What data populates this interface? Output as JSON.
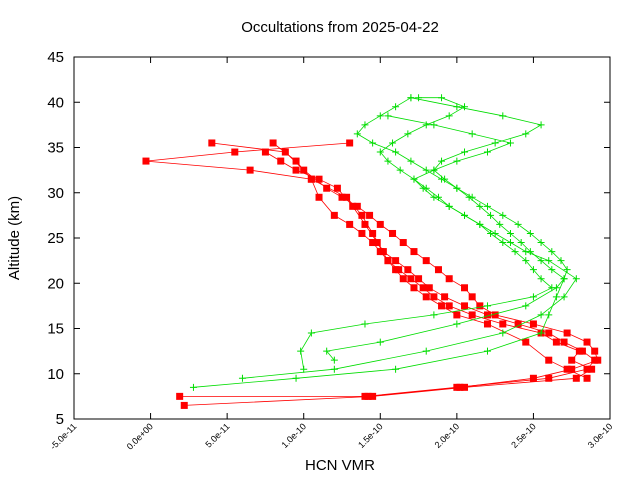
{
  "chart_data": {
    "type": "line",
    "title": "Occultations from 2025-04-22",
    "xlabel": "HCN VMR",
    "ylabel": "Altitude (km)",
    "xlim": [
      -5e-11,
      3e-10
    ],
    "ylim": [
      5,
      45
    ],
    "x_ticks": [
      -5e-11,
      0,
      5e-11,
      1e-10,
      1.5e-10,
      2e-10,
      2.5e-10,
      3e-10
    ],
    "x_tick_labels": [
      "-5.0e-11",
      "0.0e+00",
      "5.0e-11",
      "1.0e-10",
      "1.5e-10",
      "2.0e-10",
      "2.5e-10",
      "3.0e-10"
    ],
    "y_ticks": [
      5,
      10,
      15,
      20,
      25,
      30,
      35,
      40,
      45
    ],
    "y_tick_labels": [
      "5",
      "10",
      "15",
      "20",
      "25",
      "30",
      "35",
      "40",
      "45"
    ],
    "series": [
      {
        "name": "profile-red-1",
        "color": "#ff0000",
        "marker": "square",
        "x": [
          2.2e-11,
          1.45e-10,
          2.05e-10,
          2.78e-10,
          2.88e-10,
          2.75e-10,
          2.8e-10,
          2.65e-10,
          2.55e-10,
          2.3e-10,
          2.1e-10,
          1.95e-10,
          1.85e-10,
          1.78e-10,
          1.7e-10,
          1.62e-10,
          1.55e-10,
          1.48e-10,
          1.4e-10,
          1.32e-10,
          1.22e-10,
          1.1e-10,
          9.5e-11,
          8.5e-11,
          7.5e-11
        ],
        "y": [
          6.5,
          7.5,
          8.5,
          9.5,
          10.5,
          11.5,
          12.5,
          13.5,
          14.5,
          15.5,
          16.5,
          17.5,
          18.5,
          19.5,
          20.5,
          21.5,
          22.5,
          24.5,
          26.5,
          28.5,
          30.5,
          31.5,
          32.5,
          33.5,
          34.5
        ]
      },
      {
        "name": "profile-red-2",
        "color": "#ff0000",
        "marker": "square",
        "x": [
          1.9e-11,
          1.4e-10,
          2e-10,
          2.6e-10,
          2.85e-10,
          2.9e-10,
          2.82e-10,
          2.7e-10,
          2.6e-10,
          2.4e-10,
          2.2e-10,
          2.05e-10,
          1.92e-10,
          1.82e-10,
          1.75e-10,
          1.68e-10,
          1.6e-10,
          1.52e-10,
          1.45e-10,
          1.38e-10,
          1.28e-10,
          1.05e-10,
          6.5e-11,
          -3e-12,
          5.5e-11,
          1.3e-10
        ],
        "y": [
          7.5,
          7.5,
          8.5,
          9.5,
          10.5,
          11.5,
          12.5,
          13.5,
          14.5,
          15.5,
          16.5,
          17.5,
          18.5,
          19.5,
          20.5,
          21.5,
          22.5,
          23.5,
          25.5,
          27.5,
          29.5,
          31.5,
          32.5,
          33.5,
          34.5,
          35.5
        ]
      },
      {
        "name": "profile-red-3",
        "color": "#ff0000",
        "marker": "square",
        "x": [
          1.42e-10,
          2.02e-10,
          2.5e-10,
          2.75e-10,
          2.92e-10,
          2.9e-10,
          2.85e-10,
          2.72e-10,
          2.5e-10,
          2.25e-10,
          2.15e-10,
          2.1e-10,
          2.05e-10,
          1.95e-10,
          1.88e-10,
          1.8e-10,
          1.72e-10,
          1.65e-10,
          1.58e-10,
          1.5e-10,
          1.43e-10,
          1.35e-10,
          1.25e-10,
          1.15e-10,
          1e-10,
          8.8e-11,
          4e-11
        ],
        "y": [
          7.5,
          8.5,
          9.5,
          10.5,
          11.5,
          12.5,
          13.5,
          14.5,
          15.5,
          16.5,
          17.5,
          18.5,
          19.5,
          20.5,
          21.5,
          22.5,
          23.5,
          24.5,
          25.5,
          26.5,
          27.5,
          28.5,
          29.5,
          30.5,
          32.5,
          34.5,
          35.5
        ]
      },
      {
        "name": "profile-red-4",
        "color": "#ff0000",
        "marker": "square",
        "x": [
          2.85e-10,
          2.72e-10,
          2.6e-10,
          2.45e-10,
          2.2e-10,
          2e-10,
          1.9e-10,
          1.8e-10,
          1.72e-10,
          1.65e-10,
          1.6e-10,
          1.55e-10,
          1.5e-10,
          1.45e-10,
          1.38e-10,
          1.3e-10,
          1.2e-10,
          1.1e-10,
          1.05e-10,
          9.5e-11,
          8e-11
        ],
        "y": [
          9.5,
          10.5,
          11.5,
          13.5,
          15.5,
          16.5,
          17.5,
          18.5,
          19.5,
          20.5,
          21.5,
          22.5,
          23.5,
          24.5,
          25.5,
          26.5,
          27.5,
          29.5,
          31.5,
          33.5,
          35.5
        ]
      },
      {
        "name": "profile-green-1",
        "color": "#00dd00",
        "marker": "plus",
        "x": [
          2.8e-11,
          9.5e-11,
          1.6e-10,
          2.2e-10,
          2.55e-10,
          2.6e-10,
          2.65e-10,
          2.7e-10,
          2.72e-10,
          2.68e-10,
          2.62e-10,
          2.55e-10,
          2.48e-10,
          2.4e-10,
          2.3e-10,
          2.2e-10,
          2.1e-10,
          2e-10,
          1.9e-10,
          1.8e-10,
          1.7e-10,
          1.6e-10,
          1.45e-10,
          1.35e-10,
          1.4e-10,
          1.5e-10,
          1.6e-10,
          1.7e-10
        ],
        "y": [
          8.5,
          9.5,
          10.5,
          12.5,
          14.5,
          16.5,
          18.5,
          20.5,
          21.5,
          22.5,
          23.5,
          24.5,
          25.5,
          26.5,
          27.5,
          28.5,
          29.5,
          30.5,
          31.5,
          32.5,
          33.5,
          34.5,
          35.5,
          36.5,
          37.5,
          38.5,
          39.5,
          40.5
        ]
      },
      {
        "name": "profile-green-2",
        "color": "#00dd00",
        "marker": "plus",
        "x": [
          6e-11,
          1.2e-10,
          1.8e-10,
          2.3e-10,
          2.55e-10,
          2.7e-10,
          2.78e-10,
          2.6e-10,
          2.45e-10,
          2.35e-10,
          2.25e-10,
          2.15e-10,
          2.05e-10,
          1.95e-10,
          1.88e-10,
          1.8e-10,
          1.72e-10,
          1.63e-10,
          1.55e-10,
          1.5e-10,
          1.58e-10,
          1.68e-10,
          1.8e-10,
          1.95e-10,
          2.05e-10,
          1.9e-10,
          1.75e-10
        ],
        "y": [
          9.5,
          10.5,
          12.5,
          14.5,
          16.5,
          18.5,
          20.5,
          22.5,
          23.5,
          24.5,
          25.5,
          26.5,
          27.5,
          28.5,
          29.5,
          30.5,
          31.5,
          32.5,
          33.5,
          34.5,
          35.5,
          36.5,
          37.5,
          38.5,
          39.5,
          40.5,
          40.5
        ]
      },
      {
        "name": "profile-green-3",
        "color": "#00dd00",
        "marker": "plus",
        "x": [
          1e-10,
          9.8e-11,
          1.05e-10,
          1.4e-10,
          1.85e-10,
          2.2e-10,
          2.5e-10,
          2.62e-10,
          2.55e-10,
          2.5e-10,
          2.45e-10,
          2.38e-10,
          2.3e-10,
          2.22e-10,
          2.15e-10,
          2.05e-10,
          1.95e-10,
          1.85e-10,
          1.78e-10,
          1.72e-10,
          1.85e-10,
          2e-10,
          2.2e-10,
          2.35e-10,
          2.1e-10,
          1.85e-10,
          1.55e-10
        ],
        "y": [
          10.5,
          12.5,
          14.5,
          15.5,
          16.5,
          17.5,
          18.5,
          19.5,
          20.5,
          21.5,
          22.5,
          23.5,
          24.5,
          25.5,
          26.5,
          27.5,
          28.5,
          29.5,
          30.5,
          31.5,
          32.5,
          33.5,
          34.5,
          35.5,
          36.5,
          37.5,
          38.5
        ]
      },
      {
        "name": "profile-green-4",
        "color": "#00dd00",
        "marker": "plus",
        "x": [
          1.2e-10,
          1.15e-10,
          1.5e-10,
          2e-10,
          2.45e-10,
          2.65e-10,
          2.7e-10,
          2.62e-10,
          2.55e-10,
          2.48e-10,
          2.42e-10,
          2.35e-10,
          2.28e-10,
          2.22e-10,
          2.15e-10,
          2.08e-10,
          2e-10,
          1.92e-10,
          1.85e-10,
          1.9e-10,
          2.05e-10,
          2.25e-10,
          2.45e-10,
          2.55e-10,
          2.3e-10,
          2e-10,
          1.7e-10
        ],
        "y": [
          11.5,
          12.5,
          13.5,
          15.5,
          17.5,
          19.5,
          20.5,
          21.5,
          22.5,
          23.5,
          24.5,
          25.5,
          26.5,
          27.5,
          28.5,
          29.5,
          30.5,
          31.5,
          32.5,
          33.5,
          34.5,
          35.5,
          36.5,
          37.5,
          38.5,
          39.5,
          40.5
        ]
      }
    ]
  }
}
